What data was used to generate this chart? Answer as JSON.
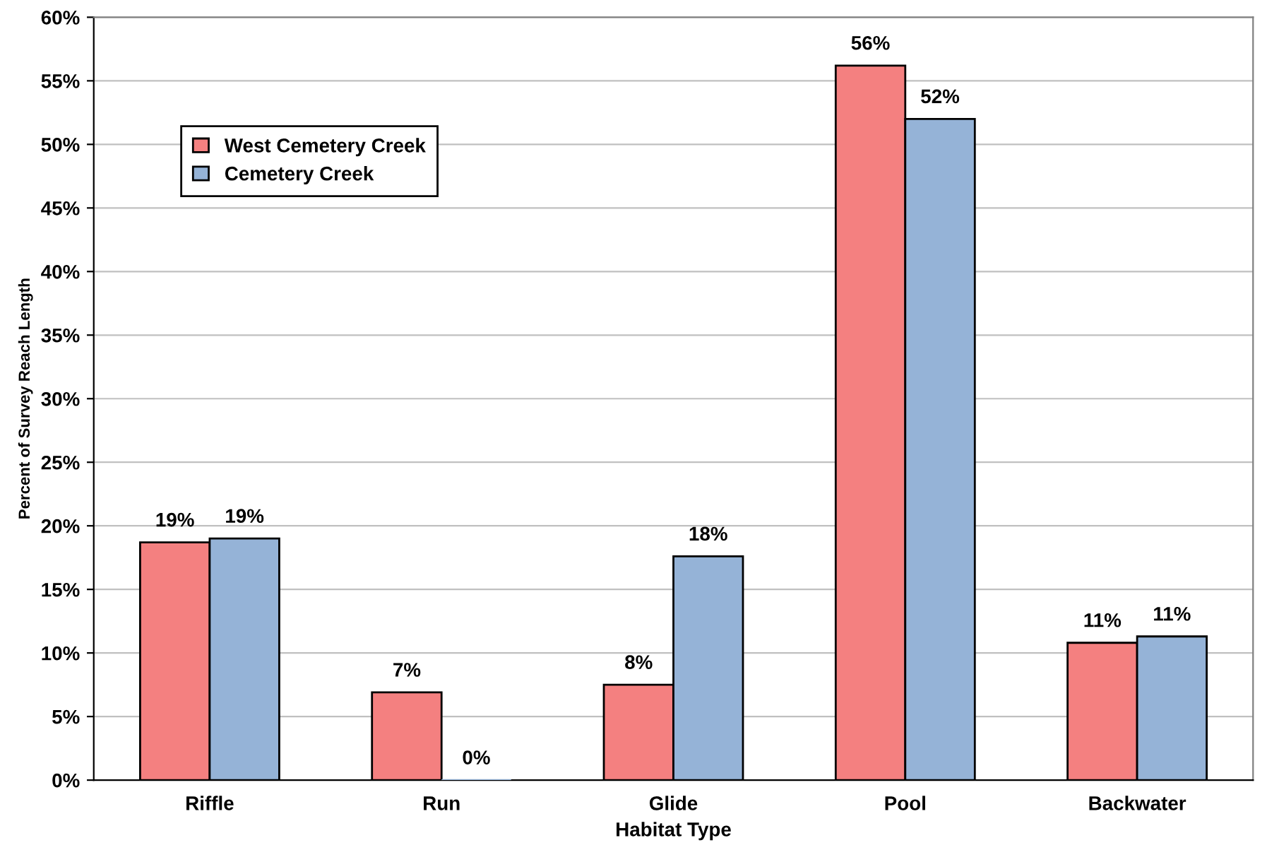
{
  "chart_data": {
    "type": "bar",
    "xlabel": "Habitat Type",
    "ylabel": "Percent of Survey Reach Length",
    "categories": [
      "Riffle",
      "Run",
      "Glide",
      "Pool",
      "Backwater"
    ],
    "series": [
      {
        "name": "West Cemetery Creek",
        "color": "#f48080",
        "values": [
          18.7,
          6.9,
          7.5,
          56.2,
          10.8
        ],
        "value_labels": [
          "19%",
          "7%",
          "8%",
          "56%",
          "11%"
        ]
      },
      {
        "name": "Cemetery Creek",
        "color": "#95b3d7",
        "values": [
          19.0,
          0,
          17.6,
          52.0,
          11.3
        ],
        "value_labels": [
          "19%",
          "0%",
          "18%",
          "52%",
          "11%"
        ]
      }
    ],
    "ylim": [
      0,
      60
    ],
    "yticks": [
      {
        "value": 0,
        "label": "0%"
      },
      {
        "value": 5,
        "label": "5%"
      },
      {
        "value": 10,
        "label": "10%"
      },
      {
        "value": 15,
        "label": "15%"
      },
      {
        "value": 20,
        "label": "20%"
      },
      {
        "value": 25,
        "label": "25%"
      },
      {
        "value": 30,
        "label": "30%"
      },
      {
        "value": 35,
        "label": "35%"
      },
      {
        "value": 40,
        "label": "40%"
      },
      {
        "value": 45,
        "label": "45%"
      },
      {
        "value": 50,
        "label": "50%"
      },
      {
        "value": 55,
        "label": "55%"
      },
      {
        "value": 60,
        "label": "60%"
      }
    ],
    "grid": "y",
    "legend": "top left"
  }
}
